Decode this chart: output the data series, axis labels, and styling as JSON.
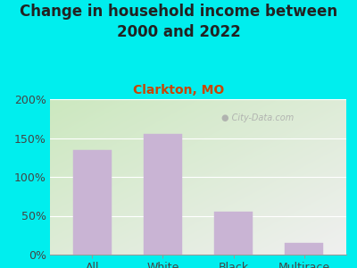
{
  "title": "Change in household income between\n2000 and 2022",
  "subtitle": "Clarkton, MO",
  "categories": [
    "All",
    "White",
    "Black",
    "Multirace"
  ],
  "values": [
    135,
    155,
    55,
    15
  ],
  "bar_color": "#C9B4D4",
  "bar_edgecolor": "#C9B4D4",
  "title_fontsize": 12,
  "subtitle_fontsize": 10,
  "subtitle_color": "#CC4400",
  "bg_color": "#00EEEE",
  "plot_bg_color_topleft": "#cce8c0",
  "plot_bg_color_bottomright": "#f0f0f0",
  "ylim": [
    0,
    200
  ],
  "yticks": [
    0,
    50,
    100,
    150,
    200
  ],
  "tick_fontsize": 9,
  "watermark": "City-Data.com",
  "watermark_color": "#aaaaaa"
}
